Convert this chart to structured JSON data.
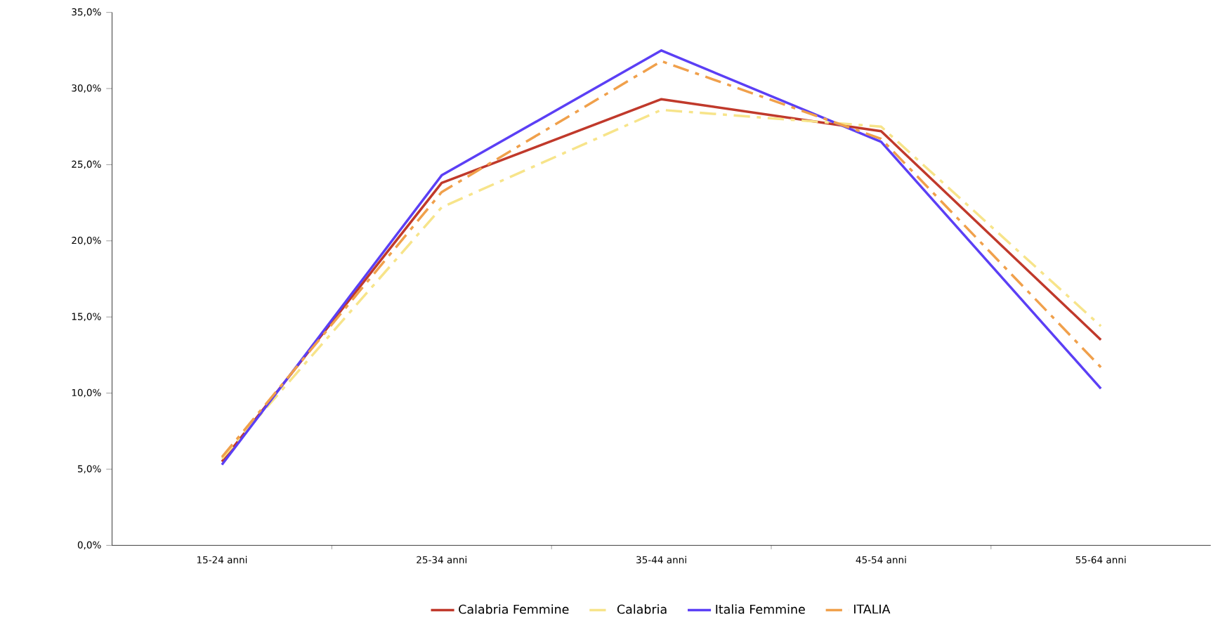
{
  "chart_data": {
    "type": "line",
    "categories": [
      "15-24 anni",
      "25-34 anni",
      "35-44 anni",
      "45-54 anni",
      "55-64 anni"
    ],
    "series": [
      {
        "name": "Calabria Femmine",
        "color": "#c0392b",
        "line_style": "solid",
        "values": [
          5.5,
          23.8,
          29.3,
          27.2,
          13.5
        ]
      },
      {
        "name": "Calabria",
        "color": "#f7e48a",
        "line_style": "dashed",
        "values": [
          5.7,
          22.2,
          28.6,
          27.5,
          14.4
        ]
      },
      {
        "name": "Italia Femmine",
        "color": "#5b3ff5",
        "line_style": "solid",
        "values": [
          5.3,
          24.3,
          32.5,
          26.5,
          10.3
        ]
      },
      {
        "name": "ITALIA",
        "color": "#f0a04b",
        "line_style": "dashed",
        "values": [
          5.8,
          23.2,
          31.8,
          26.7,
          11.7
        ]
      }
    ],
    "ylim": [
      0,
      35
    ],
    "yticks": [
      {
        "value": 0,
        "label": "0,0%"
      },
      {
        "value": 5,
        "label": "5,0%"
      },
      {
        "value": 10,
        "label": "10,0%"
      },
      {
        "value": 15,
        "label": "15,0%"
      },
      {
        "value": 20,
        "label": "20,0%"
      },
      {
        "value": 25,
        "label": "25,0%"
      },
      {
        "value": 30,
        "label": "30,0%"
      },
      {
        "value": 35,
        "label": "35,0%"
      }
    ],
    "grid": false,
    "legend": "bottom",
    "marker": "none"
  }
}
